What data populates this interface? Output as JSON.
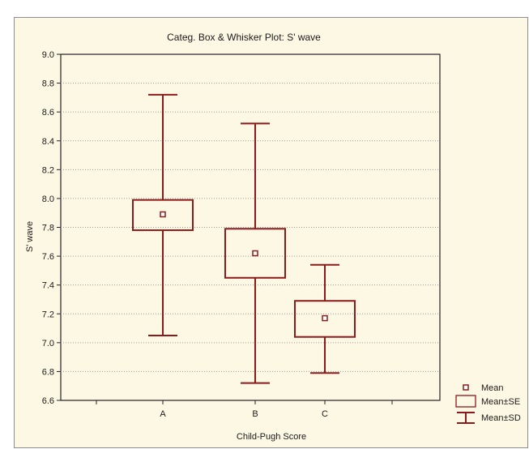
{
  "chart_data": {
    "type": "boxplot",
    "title": "Categ. Box & Whisker Plot:  S' wave",
    "xlabel": "Child-Pugh Score",
    "ylabel": "S' wave",
    "ylim": [
      6.6,
      9.0
    ],
    "yticks": [
      "6.6",
      "6.8",
      "7.0",
      "7.2",
      "7.4",
      "7.6",
      "7.8",
      "8.0",
      "8.2",
      "8.4",
      "8.6",
      "8.8",
      "9.0"
    ],
    "categories": [
      "A",
      "B",
      "C"
    ],
    "series": [
      {
        "category": "A",
        "mean": 7.89,
        "se_low": 7.78,
        "se_high": 7.99,
        "sd_low": 7.05,
        "sd_high": 8.72
      },
      {
        "category": "B",
        "mean": 7.62,
        "se_low": 7.45,
        "se_high": 7.79,
        "sd_low": 6.72,
        "sd_high": 8.52
      },
      {
        "category": "C",
        "mean": 7.17,
        "se_low": 7.04,
        "se_high": 7.29,
        "sd_low": 6.79,
        "sd_high": 7.54
      }
    ],
    "legend": {
      "position": "bottom-right",
      "items": [
        "Mean",
        "Mean±SE",
        "Mean±SD"
      ]
    },
    "grid": true,
    "colors": {
      "mark": "#8b1a1a",
      "grid": "#9a9a9a",
      "background": "#fdf8e4"
    }
  }
}
